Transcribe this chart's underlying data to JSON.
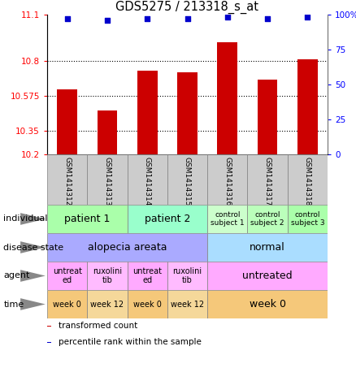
{
  "title": "GDS5275 / 213318_s_at",
  "samples": [
    "GSM1414312",
    "GSM1414313",
    "GSM1414314",
    "GSM1414315",
    "GSM1414316",
    "GSM1414317",
    "GSM1414318"
  ],
  "bar_values": [
    10.62,
    10.48,
    10.74,
    10.73,
    10.92,
    10.68,
    10.81
  ],
  "dot_values": [
    97,
    96,
    97,
    97,
    98,
    97,
    98
  ],
  "ylim_left": [
    10.2,
    11.1
  ],
  "ylim_right": [
    0,
    100
  ],
  "yticks_left": [
    10.2,
    10.35,
    10.575,
    10.8,
    11.1
  ],
  "yticks_right": [
    0,
    25,
    50,
    75,
    100
  ],
  "ytick_labels_left": [
    "10.2",
    "10.35",
    "10.575",
    "10.8",
    "11.1"
  ],
  "ytick_labels_right": [
    "0",
    "25",
    "50",
    "75",
    "100%"
  ],
  "hlines": [
    10.35,
    10.575,
    10.8
  ],
  "bar_color": "#cc0000",
  "dot_color": "#0000cc",
  "bar_width": 0.5,
  "annotation_rows": [
    {
      "label": "individual",
      "cells": [
        {
          "text": "patient 1",
          "span": [
            0,
            2
          ],
          "color": "#aaffaa",
          "fontsize": 9
        },
        {
          "text": "patient 2",
          "span": [
            2,
            4
          ],
          "color": "#99ffcc",
          "fontsize": 9
        },
        {
          "text": "control\nsubject 1",
          "span": [
            4,
            5
          ],
          "color": "#ccffcc",
          "fontsize": 6.5
        },
        {
          "text": "control\nsubject 2",
          "span": [
            5,
            6
          ],
          "color": "#bbffbb",
          "fontsize": 6.5
        },
        {
          "text": "control\nsubject 3",
          "span": [
            6,
            7
          ],
          "color": "#aaffaa",
          "fontsize": 6.5
        }
      ]
    },
    {
      "label": "disease state",
      "cells": [
        {
          "text": "alopecia areata",
          "span": [
            0,
            4
          ],
          "color": "#aaaaff",
          "fontsize": 9
        },
        {
          "text": "normal",
          "span": [
            4,
            7
          ],
          "color": "#aaddff",
          "fontsize": 9
        }
      ]
    },
    {
      "label": "agent",
      "cells": [
        {
          "text": "untreat\ned",
          "span": [
            0,
            1
          ],
          "color": "#ffaaff",
          "fontsize": 7
        },
        {
          "text": "ruxolini\ntib",
          "span": [
            1,
            2
          ],
          "color": "#ffbbff",
          "fontsize": 7
        },
        {
          "text": "untreat\ned",
          "span": [
            2,
            3
          ],
          "color": "#ffaaff",
          "fontsize": 7
        },
        {
          "text": "ruxolini\ntib",
          "span": [
            3,
            4
          ],
          "color": "#ffbbff",
          "fontsize": 7
        },
        {
          "text": "untreated",
          "span": [
            4,
            7
          ],
          "color": "#ffaaff",
          "fontsize": 9
        }
      ]
    },
    {
      "label": "time",
      "cells": [
        {
          "text": "week 0",
          "span": [
            0,
            1
          ],
          "color": "#f5c87a",
          "fontsize": 7
        },
        {
          "text": "week 12",
          "span": [
            1,
            2
          ],
          "color": "#f5d89a",
          "fontsize": 7
        },
        {
          "text": "week 0",
          "span": [
            2,
            3
          ],
          "color": "#f5c87a",
          "fontsize": 7
        },
        {
          "text": "week 12",
          "span": [
            3,
            4
          ],
          "color": "#f5d89a",
          "fontsize": 7
        },
        {
          "text": "week 0",
          "span": [
            4,
            7
          ],
          "color": "#f5c87a",
          "fontsize": 9
        }
      ]
    }
  ],
  "legend_items": [
    {
      "color": "#cc0000",
      "label": "transformed count"
    },
    {
      "color": "#0000cc",
      "label": "percentile rank within the sample"
    }
  ],
  "fig_width": 4.38,
  "fig_height": 4.53,
  "dpi": 100
}
